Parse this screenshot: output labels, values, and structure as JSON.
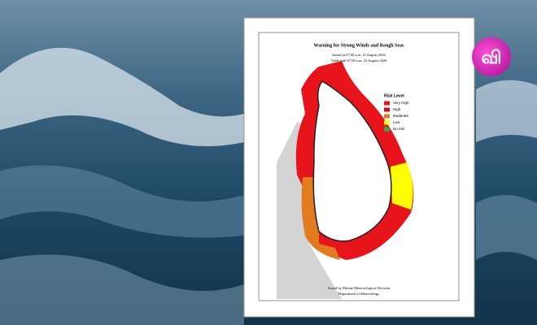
{
  "map": {
    "title": "Warning for Strong Winds and Rough Seas",
    "issued": "Issued at 07.00 a.m. 15 August 2026",
    "valid": "Valid until 07.00 a.m. 22 August 2026",
    "legend": {
      "title": "Risk Level",
      "items": [
        {
          "label": "Very High",
          "color": "#e8141b"
        },
        {
          "label": "High",
          "color": "#c8141b"
        },
        {
          "label": "Moderate",
          "color": "#e07b1f"
        },
        {
          "label": "Low",
          "color": "#ffff00"
        },
        {
          "label": "No risk",
          "color": "#22b14c"
        }
      ]
    },
    "footer": [
      "Issued by Marine Meteorological Division",
      "Department of Meteorology"
    ]
  },
  "logo": {
    "text": "வி"
  }
}
